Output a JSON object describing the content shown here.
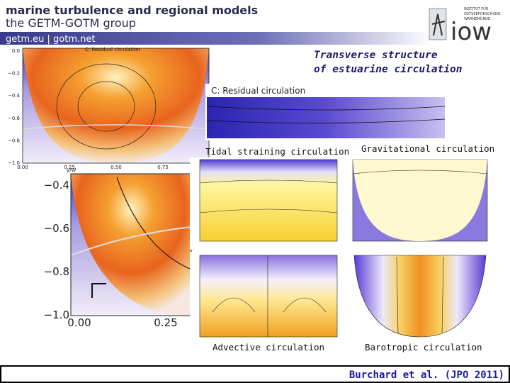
{
  "header": {
    "title": "marine turbulence and regional models",
    "subtitle": "the GETM-GOTM group",
    "links": "getm.eu | gotm.net",
    "logo": "iow",
    "logo_caption": [
      "INSTITUT FÜR",
      "OSTSEEFORSCHUNG",
      "WARNEMÜNDE"
    ]
  },
  "slide_title": [
    "Transverse structure",
    "of estuarine circulation"
  ],
  "main_plot": {
    "title": "C: Residual circulation",
    "yticks": [
      "0.0",
      "−0.2",
      "−0.4",
      "−0.6",
      "−0.8",
      "−1.0"
    ],
    "xticks": [
      "0.00",
      "0.25",
      "0.50",
      "0.75"
    ],
    "xlabel": "y/W"
  },
  "zoom_title": "C: Residual circulation",
  "zoom_plot": {
    "yticks": [
      "−0.4",
      "−0.6",
      "−0.8",
      "−1.0"
    ],
    "xticks": [
      "0.00",
      "0.25"
    ]
  },
  "panels": [
    {
      "label": "Tidal straining circulation"
    },
    {
      "label": "Gravitational circulation"
    },
    {
      "label": "Advective circulation"
    },
    {
      "label": "Barotropic circulation"
    }
  ],
  "citation": "Burchard et al. (JPO 2011)"
}
